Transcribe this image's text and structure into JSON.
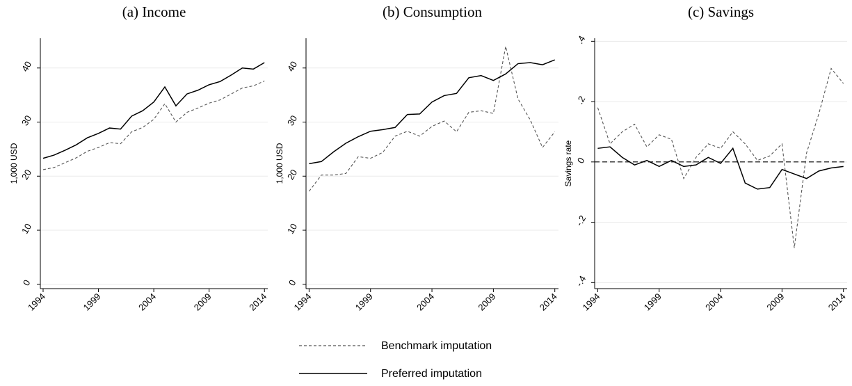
{
  "chart_data": [
    {
      "type": "line",
      "title": "(a) Income",
      "ylabel": "1,000 USD",
      "x": [
        1994,
        1995,
        1996,
        1997,
        1998,
        1999,
        2000,
        2001,
        2002,
        2003,
        2004,
        2005,
        2006,
        2007,
        2008,
        2009,
        2010,
        2011,
        2012,
        2013,
        2014
      ],
      "xlim": [
        1993.75,
        2014.3
      ],
      "xticks": [
        1994,
        1999,
        2004,
        2009,
        2014
      ],
      "ylim": [
        -0.8,
        45.5
      ],
      "yticks": [
        0,
        10,
        20,
        30,
        40
      ],
      "grid": true,
      "series": [
        {
          "name": "Benchmark imputation",
          "color": "#555555",
          "style": "dashed",
          "values": [
            21.2,
            21.6,
            22.5,
            23.4,
            24.6,
            25.3,
            26.2,
            26.0,
            28.2,
            29.0,
            30.5,
            33.4,
            30.0,
            31.8,
            32.6,
            33.5,
            34.1,
            35.2,
            36.3,
            36.7,
            37.6
          ]
        },
        {
          "name": "Preferred imputation",
          "color": "#000000",
          "style": "solid",
          "values": [
            23.3,
            23.9,
            24.8,
            25.8,
            27.1,
            27.9,
            28.9,
            28.7,
            31.1,
            32.1,
            33.7,
            36.5,
            33.0,
            35.2,
            35.9,
            36.9,
            37.5,
            38.7,
            40.0,
            39.8,
            41.0
          ]
        }
      ]
    },
    {
      "type": "line",
      "title": "(b) Consumption",
      "ylabel": "1,000 USD",
      "x": [
        1994,
        1995,
        1996,
        1997,
        1998,
        1999,
        2000,
        2001,
        2002,
        2003,
        2004,
        2005,
        2006,
        2007,
        2008,
        2009,
        2010,
        2011,
        2012,
        2013,
        2014
      ],
      "xlim": [
        1993.75,
        2014.3
      ],
      "xticks": [
        1994,
        1999,
        2004,
        2009,
        2014
      ],
      "ylim": [
        -0.8,
        45.5
      ],
      "yticks": [
        0,
        10,
        20,
        30,
        40
      ],
      "grid": true,
      "series": [
        {
          "color": "#555555",
          "style": "dashed",
          "values": [
            17.2,
            20.2,
            20.2,
            20.5,
            23.6,
            23.3,
            24.4,
            27.4,
            28.3,
            27.4,
            29.2,
            30.2,
            28.2,
            31.8,
            32.1,
            31.6,
            44.0,
            34.3,
            30.4,
            25.3,
            28.2
          ]
        },
        {
          "color": "#000000",
          "style": "solid",
          "values": [
            22.3,
            22.7,
            24.5,
            26.1,
            27.3,
            28.3,
            28.6,
            29.0,
            31.4,
            31.5,
            33.7,
            34.9,
            35.3,
            38.2,
            38.6,
            37.7,
            38.9,
            40.8,
            41.0,
            40.6,
            41.5
          ]
        }
      ]
    },
    {
      "type": "line",
      "title": "(c) Savings",
      "ylabel": "Savings rate",
      "x": [
        1994,
        1995,
        1996,
        1997,
        1998,
        1999,
        2000,
        2001,
        2002,
        2003,
        2004,
        2005,
        2006,
        2007,
        2008,
        2009,
        2010,
        2011,
        2012,
        2013,
        2014
      ],
      "xlim": [
        1993.75,
        2014.3
      ],
      "xticks": [
        1994,
        1999,
        2004,
        2009,
        2014
      ],
      "ylim": [
        -0.42,
        0.41
      ],
      "yticks": [
        {
          "value": -0.4,
          "label": "-.4"
        },
        {
          "value": -0.2,
          "label": "-.2"
        },
        0,
        {
          "value": 0.2,
          "label": ".2"
        },
        {
          "value": 0.4,
          "label": ".4"
        }
      ],
      "grid": true,
      "refline": 0,
      "series": [
        {
          "color": "#555555",
          "style": "dashed",
          "values": [
            0.18,
            0.06,
            0.1,
            0.125,
            0.05,
            0.09,
            0.075,
            -0.055,
            0.015,
            0.06,
            0.045,
            0.1,
            0.06,
            0.005,
            0.02,
            0.06,
            -0.285,
            0.03,
            0.16,
            0.31,
            0.26
          ]
        },
        {
          "color": "#000000",
          "style": "solid",
          "values": [
            0.045,
            0.05,
            0.015,
            -0.01,
            0.005,
            -0.015,
            0.005,
            -0.015,
            -0.01,
            0.015,
            -0.005,
            0.045,
            -0.07,
            -0.09,
            -0.085,
            -0.025,
            -0.04,
            -0.055,
            -0.03,
            -0.02,
            -0.015
          ]
        }
      ]
    }
  ]
}
